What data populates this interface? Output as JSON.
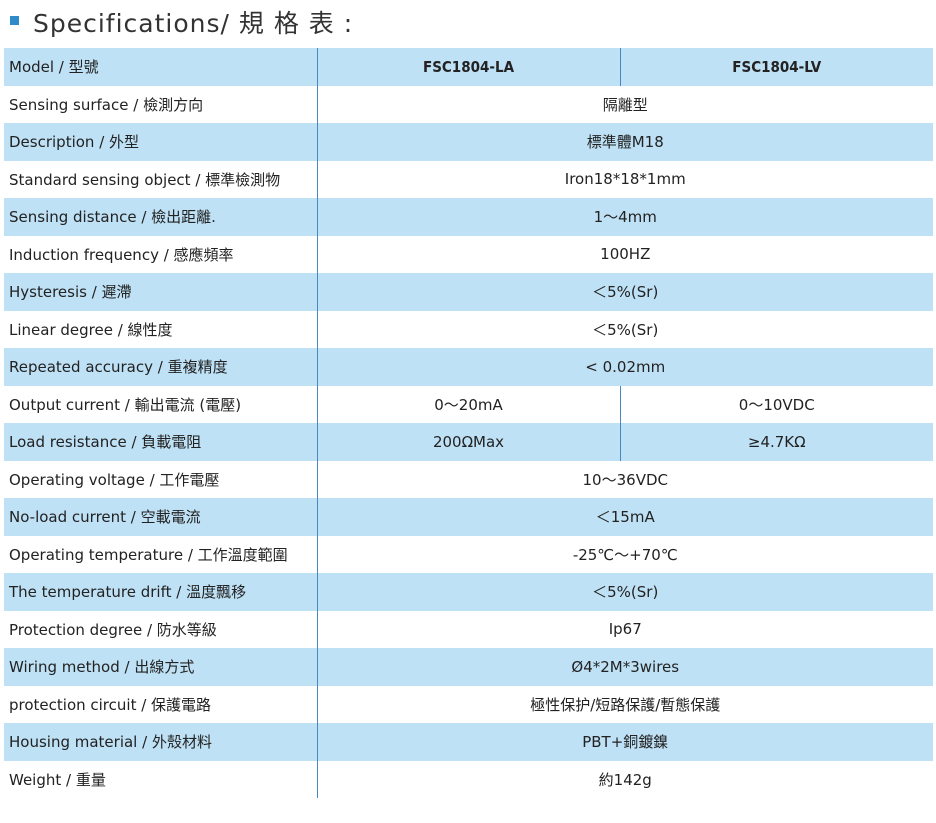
{
  "heading": {
    "title": "Specifications/ 規 格 表 :"
  },
  "table": {
    "header": {
      "label": "Model / 型號",
      "col1": "FSC1804-LA",
      "col2": "FSC1804-LV"
    },
    "rows": [
      {
        "label": "Sensing surface / 檢測方向",
        "value": "隔離型"
      },
      {
        "label": "Description / 外型",
        "value": "標準體M18"
      },
      {
        "label": "Standard sensing object / 標準檢測物",
        "value": "Iron18*18*1mm"
      },
      {
        "label": "Sensing distance / 檢出距離.",
        "value": "1～4mm"
      },
      {
        "label": "Induction frequency / 感應頻率",
        "value": "100HZ"
      },
      {
        "label": "Hysteresis / 遲滯",
        "value": "＜5%(Sr)"
      },
      {
        "label": "Linear degree / 線性度",
        "value": "＜5%(Sr)"
      },
      {
        "label": "Repeated accuracy / 重複精度",
        "value": "< 0.02mm"
      },
      {
        "label": "Output current / 輸出電流 (電壓)",
        "col1": "0～20mA",
        "col2": "0～10VDC"
      },
      {
        "label": "Load resistance / 負載電阻",
        "col1": "200ΩMax",
        "col2": "≥4.7KΩ"
      },
      {
        "label": "Operating voltage / 工作電壓",
        "value": "10～36VDC"
      },
      {
        "label": "No-load current / 空載電流",
        "value": "＜15mA"
      },
      {
        "label": "Operating temperature / 工作溫度範圍",
        "value": "-25℃～+70℃"
      },
      {
        "label": "The temperature drift / 溫度飄移",
        "value": "＜5%(Sr)"
      },
      {
        "label": "Protection degree / 防水等級",
        "value": "Ip67"
      },
      {
        "label": "Wiring method / 出線方式",
        "value": "Ø4*2M*3wires"
      },
      {
        "label": "protection circuit / 保護電路",
        "value": "極性保护/短路保護/暫態保護"
      },
      {
        "label": "Housing material / 外殼材料",
        "value": "PBT+銅鍍鎳"
      },
      {
        "label": "Weight / 重量",
        "value": "約142g"
      }
    ]
  }
}
